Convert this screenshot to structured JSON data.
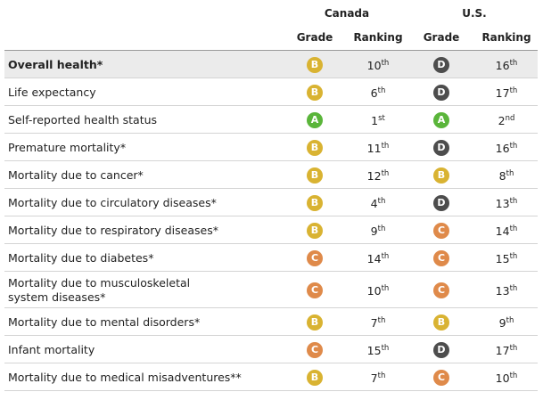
{
  "header": {
    "canada": "Canada",
    "us": "U.S.",
    "columns": [
      "Grade",
      "Ranking",
      "Grade",
      "Ranking"
    ]
  },
  "grade_colors": {
    "A": "#5ab53a",
    "B": "#d9b332",
    "C": "#df8a4a",
    "D": "#4d4d4d"
  },
  "rows": [
    {
      "label": "Overall health*",
      "highlight": true,
      "canada": {
        "grade": "B",
        "rank": "10",
        "suffix": "th"
      },
      "us": {
        "grade": "D",
        "rank": "16",
        "suffix": "th"
      }
    },
    {
      "label": "Life expectancy",
      "canada": {
        "grade": "B",
        "rank": "6",
        "suffix": "th"
      },
      "us": {
        "grade": "D",
        "rank": "17",
        "suffix": "th"
      }
    },
    {
      "label": "Self-reported health status",
      "canada": {
        "grade": "A",
        "rank": "1",
        "suffix": "st"
      },
      "us": {
        "grade": "A",
        "rank": "2",
        "suffix": "nd"
      }
    },
    {
      "label": "Premature mortality*",
      "canada": {
        "grade": "B",
        "rank": "11",
        "suffix": "th"
      },
      "us": {
        "grade": "D",
        "rank": "16",
        "suffix": "th"
      }
    },
    {
      "label": "Mortality due to cancer*",
      "canada": {
        "grade": "B",
        "rank": "12",
        "suffix": "th"
      },
      "us": {
        "grade": "B",
        "rank": "8",
        "suffix": "th"
      }
    },
    {
      "label": "Mortality due to circulatory diseases*",
      "canada": {
        "grade": "B",
        "rank": "4",
        "suffix": "th"
      },
      "us": {
        "grade": "D",
        "rank": "13",
        "suffix": "th"
      }
    },
    {
      "label": "Mortality due to respiratory diseases*",
      "canada": {
        "grade": "B",
        "rank": "9",
        "suffix": "th"
      },
      "us": {
        "grade": "C",
        "rank": "14",
        "suffix": "th"
      }
    },
    {
      "label": "Mortality due to diabetes*",
      "canada": {
        "grade": "C",
        "rank": "14",
        "suffix": "th"
      },
      "us": {
        "grade": "C",
        "rank": "15",
        "suffix": "th"
      }
    },
    {
      "label": "Mortality due to musculoskeletal system diseases*",
      "label_lines": [
        "Mortality due to musculoskeletal",
        "system diseases*"
      ],
      "canada": {
        "grade": "C",
        "rank": "10",
        "suffix": "th"
      },
      "us": {
        "grade": "C",
        "rank": "13",
        "suffix": "th"
      }
    },
    {
      "label": "Mortality due to mental disorders*",
      "canada": {
        "grade": "B",
        "rank": "7",
        "suffix": "th"
      },
      "us": {
        "grade": "B",
        "rank": "9",
        "suffix": "th"
      }
    },
    {
      "label": "Infant mortality",
      "canada": {
        "grade": "C",
        "rank": "15",
        "suffix": "th"
      },
      "us": {
        "grade": "D",
        "rank": "17",
        "suffix": "th"
      }
    },
    {
      "label": "Mortality due to medical misadventures**",
      "canada": {
        "grade": "B",
        "rank": "7",
        "suffix": "th"
      },
      "us": {
        "grade": "C",
        "rank": "10",
        "suffix": "th"
      }
    }
  ]
}
